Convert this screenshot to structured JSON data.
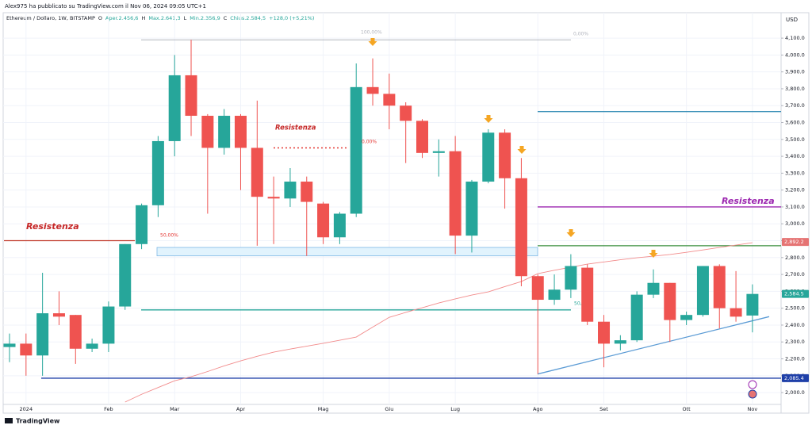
{
  "credit": "Alex975 ha pubblicato su TradingView.com il Nov 06, 2024 09:05 UTC+1",
  "logo": "TradingView",
  "chart_data": {
    "type": "candlestick",
    "header": [
      "Ethereum / Dollaro, 1W, BITSTAMP",
      "O",
      "Aper.2.456,6",
      "H",
      "Max.2.641,3",
      "L",
      "Min.2.356,9",
      "C",
      "Chius.2.584,5",
      "+128,0 (+5,21%)"
    ],
    "y_axis_label": "USD",
    "categories": [
      null,
      "2024",
      null,
      null,
      null,
      null,
      "Feb",
      null,
      null,
      null,
      "Mar",
      null,
      null,
      null,
      "Apr",
      null,
      null,
      null,
      null,
      "Mag",
      null,
      null,
      null,
      "Giu",
      null,
      null,
      null,
      "Lug",
      null,
      null,
      null,
      null,
      "Ago",
      null,
      null,
      null,
      "Set",
      null,
      null,
      null,
      null,
      "Ott",
      null,
      null,
      null,
      "Nov"
    ],
    "open": [
      2270,
      2290,
      2220,
      2470,
      2460,
      2260,
      2290,
      2510,
      2880,
      3110,
      3490,
      3880,
      3640,
      3450,
      3640,
      3450,
      3160,
      3150,
      3250,
      3120,
      2920,
      3060,
      3810,
      3770,
      3700,
      3610,
      3420,
      3430,
      2930,
      3250,
      3540,
      3270,
      2690,
      2550,
      2610,
      2740,
      2420,
      2290,
      2310,
      2580,
      2650,
      2430,
      2460,
      2750,
      2500,
      2456.6
    ],
    "high": [
      2350,
      2350,
      2710,
      2600,
      2460,
      2320,
      2540,
      2880,
      3120,
      3520,
      4000,
      4090,
      3650,
      3680,
      3650,
      3730,
      3280,
      3330,
      3280,
      3130,
      3070,
      3950,
      3980,
      3890,
      3720,
      3620,
      3500,
      3520,
      3260,
      3560,
      3560,
      3390,
      2700,
      2700,
      2820,
      2760,
      2460,
      2340,
      2600,
      2730,
      2650,
      2480,
      2750,
      2760,
      2720,
      2641.3
    ],
    "low": [
      2180,
      2100,
      2100,
      2400,
      2170,
      2240,
      2240,
      2490,
      2850,
      3040,
      3400,
      3520,
      3060,
      3410,
      3200,
      2870,
      2880,
      3100,
      2810,
      2880,
      2880,
      3040,
      3700,
      3560,
      3360,
      3390,
      3280,
      2820,
      2830,
      3240,
      3090,
      2630,
      2110,
      2520,
      2560,
      2400,
      2150,
      2250,
      2300,
      2560,
      2300,
      2400,
      2450,
      2380,
      2420,
      2356.9
    ],
    "close": [
      2290,
      2220,
      2470,
      2450,
      2260,
      2290,
      2510,
      2880,
      3110,
      3490,
      3880,
      3640,
      3450,
      3640,
      3450,
      3160,
      3150,
      3250,
      3130,
      2920,
      3060,
      3810,
      3770,
      3700,
      3610,
      3420,
      3430,
      2930,
      3250,
      3540,
      3270,
      2690,
      2550,
      2610,
      2750,
      2420,
      2290,
      2310,
      2580,
      2650,
      2430,
      2460,
      2750,
      2500,
      2450,
      2584.5
    ],
    "up_color": "#26a69a",
    "down_color": "#ef5350",
    "moving_average": {
      "color": "#f28b8b",
      "values": [
        null,
        null,
        null,
        null,
        null,
        null,
        null,
        1944,
        1990,
        2030,
        2070,
        2094,
        2125,
        2158,
        2188,
        2215,
        2240,
        2258,
        2275,
        2292,
        2310,
        2329,
        2388,
        2446,
        2475,
        2503,
        2531,
        2555,
        2578,
        2597,
        2628,
        2658,
        2705,
        2725,
        2743,
        2761,
        2774,
        2787,
        2799,
        2808,
        2818,
        2831,
        2845,
        2860,
        2874,
        2888
      ]
    },
    "ylim": [
      1930,
      4185
    ],
    "yticks": [
      {
        "value": 2000,
        "label": "2,000.0"
      },
      {
        "value": 2100,
        "label": "2,100.0"
      },
      {
        "value": 2200,
        "label": "2,200.0"
      },
      {
        "value": 2300,
        "label": "2,300.0"
      },
      {
        "value": 2400,
        "label": "2,400.0"
      },
      {
        "value": 2500,
        "label": "2,500.0"
      },
      {
        "value": 2600,
        "label": "2,600.0"
      },
      {
        "value": 2700,
        "label": "2,700.0"
      },
      {
        "value": 2800,
        "label": "2,800.0"
      },
      {
        "value": 2900,
        "label": "2,900.0"
      },
      {
        "value": 3000,
        "label": "3,000.0"
      },
      {
        "value": 3100,
        "label": "3,100.0"
      },
      {
        "value": 3200,
        "label": "3,200.0"
      },
      {
        "value": 3300,
        "label": "3,300.0"
      },
      {
        "value": 3400,
        "label": "3,400.0"
      },
      {
        "value": 3500,
        "label": "3,500.0"
      },
      {
        "value": 3600,
        "label": "3,600.0"
      },
      {
        "value": 3700,
        "label": "3,700.0"
      },
      {
        "value": 3800,
        "label": "3,800.0"
      },
      {
        "value": 3900,
        "label": "3,900.0"
      },
      {
        "value": 4000,
        "label": "4,000.0"
      },
      {
        "value": 4100,
        "label": "4,100.0"
      }
    ],
    "grid": true,
    "levels": [
      {
        "value": 2900,
        "color": "#c0392b"
      },
      {
        "value": 4090,
        "color": "#b2b5be"
      },
      {
        "value": 3665,
        "color": "#3a8fb7"
      },
      {
        "value": 3100,
        "color": "#9c27b0"
      },
      {
        "value": 2870,
        "color": "#388e3c"
      },
      {
        "value": 2490,
        "color": "#26a69a"
      },
      {
        "value": 2085.4,
        "color": "#1e3fa8"
      },
      {
        "value": 3450,
        "color": "#e53935"
      }
    ],
    "zone": [
      2810,
      2860
    ],
    "trendline": [
      2110,
      2450
    ],
    "price_labels": [
      {
        "value": 2892.2,
        "label": "2,892.2",
        "color": "#e57373"
      },
      {
        "value": 2584.5,
        "label": "2,584.5",
        "color": "#26a69a"
      },
      {
        "value": 2085.4,
        "label": "2,085.4",
        "color": "#1e3fa8"
      }
    ],
    "annotations": [
      {
        "text": "Resistenza",
        "color": "#c62828"
      },
      {
        "text": "Resistenza",
        "color": "#c62828"
      },
      {
        "text": "Resistenza",
        "color": "#9c27b0"
      },
      {
        "text": "100,00%",
        "color": "#b2b5be"
      },
      {
        "text": "0,00%",
        "color": "#b2b5be"
      },
      {
        "text": "50,00%",
        "color": "#e53935"
      },
      {
        "text": "0,00%",
        "color": "#e53935"
      },
      {
        "text": "50,",
        "color": "#26a69a"
      }
    ]
  }
}
